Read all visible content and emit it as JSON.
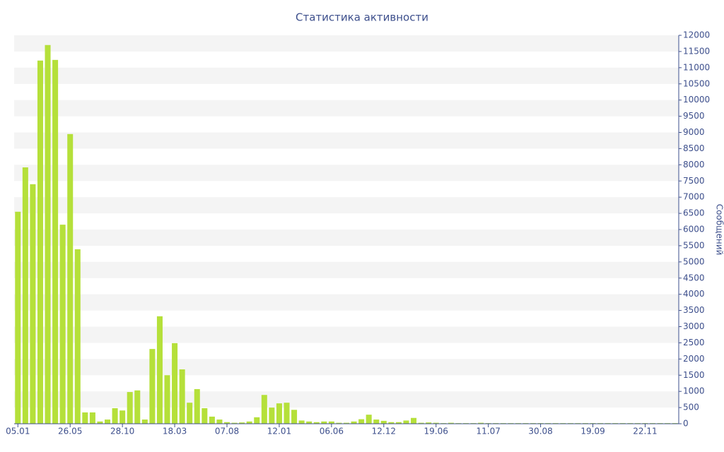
{
  "chart_data": {
    "type": "bar",
    "title": "Статистика активности",
    "y_label": "Сообщений",
    "categories": [
      "05.01",
      null,
      null,
      null,
      null,
      null,
      null,
      "26.05",
      null,
      null,
      null,
      null,
      null,
      null,
      "28.10",
      null,
      null,
      null,
      null,
      null,
      null,
      "18.03",
      null,
      null,
      null,
      null,
      null,
      null,
      "07.08",
      null,
      null,
      null,
      null,
      null,
      null,
      "12.01",
      null,
      null,
      null,
      null,
      null,
      null,
      "06.06",
      null,
      null,
      null,
      null,
      null,
      null,
      "12.12",
      null,
      null,
      null,
      null,
      null,
      null,
      "19.06",
      null,
      null,
      null,
      null,
      null,
      null,
      "11.07",
      null,
      null,
      null,
      null,
      null,
      null,
      "30.08",
      null,
      null,
      null,
      null,
      null,
      null,
      "19.09",
      null,
      null,
      null,
      null,
      null,
      null,
      "22.11",
      null,
      null,
      null,
      null
    ],
    "values": [
      6550,
      7920,
      7400,
      11220,
      11700,
      11240,
      6150,
      8950,
      5390,
      350,
      350,
      70,
      130,
      480,
      410,
      980,
      1030,
      130,
      2310,
      3320,
      1500,
      2490,
      1680,
      650,
      1070,
      480,
      220,
      130,
      50,
      30,
      40,
      70,
      200,
      890,
      500,
      630,
      650,
      430,
      100,
      70,
      50,
      70,
      70,
      30,
      30,
      70,
      140,
      280,
      130,
      90,
      50,
      50,
      100,
      180,
      30,
      40,
      30,
      20,
      30,
      20,
      20,
      20,
      30,
      20,
      20,
      20,
      20,
      20,
      20,
      20,
      20,
      20,
      20,
      20,
      20,
      20,
      20,
      20,
      20,
      20,
      20,
      20,
      20,
      20,
      20,
      20,
      20,
      20,
      20
    ],
    "color": "#b5e03a",
    "ylim": [
      0,
      12000
    ],
    "yticks": [
      0,
      500,
      1000,
      1500,
      2000,
      2500,
      3000,
      3500,
      4000,
      4500,
      5000,
      5500,
      6000,
      6500,
      7000,
      7500,
      8000,
      8500,
      9000,
      9500,
      10000,
      10500,
      11000,
      11500,
      12000
    ],
    "grid": true
  }
}
